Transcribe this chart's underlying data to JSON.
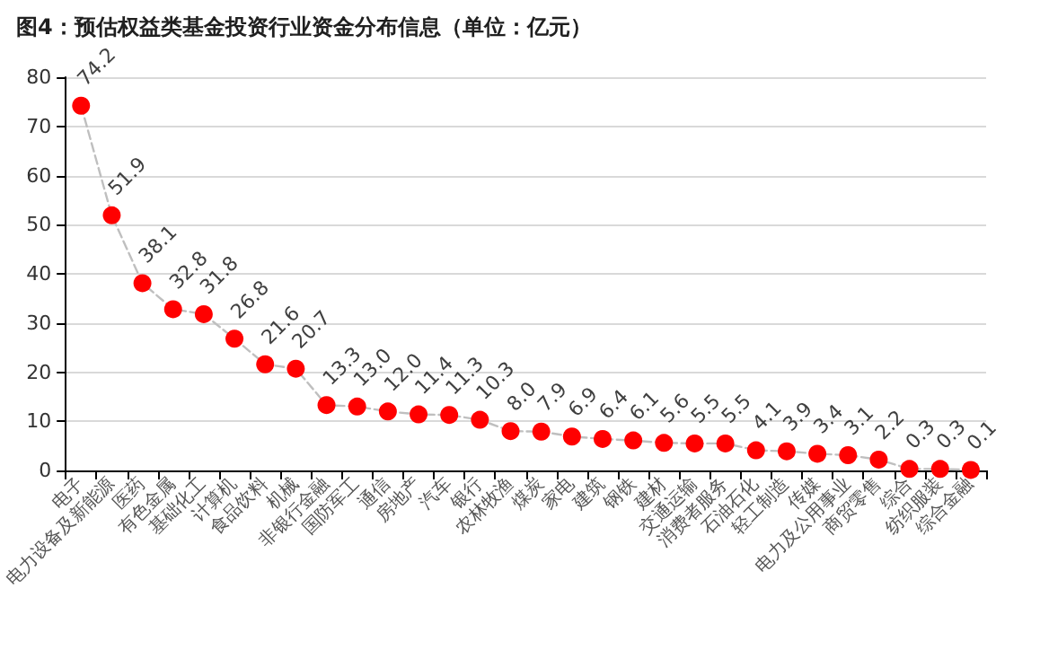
{
  "chart_data": {
    "type": "line",
    "title": "图4：预估权益类基金投资行业资金分布信息（单位：亿元）",
    "categories": [
      "电子",
      "电力设备及新能源",
      "医药",
      "有色金属",
      "基础化工",
      "计算机",
      "食品饮料",
      "机械",
      "非银行金融",
      "国防军工",
      "通信",
      "房地产",
      "汽车",
      "银行",
      "农林牧渔",
      "煤炭",
      "家电",
      "建筑",
      "钢铁",
      "建材",
      "交通运输",
      "消费者服务",
      "石油石化",
      "轻工制造",
      "传媒",
      "电力及公用事业",
      "商贸零售",
      "综合",
      "纺织服装",
      "综合金融"
    ],
    "series": [
      {
        "color": "#ff0000",
        "values": [
          74.2,
          51.9,
          38.1,
          32.8,
          31.8,
          26.8,
          21.6,
          20.7,
          13.3,
          13.0,
          12.0,
          11.4,
          11.3,
          10.3,
          8.0,
          7.9,
          6.9,
          6.4,
          6.1,
          5.6,
          5.5,
          5.5,
          4.1,
          3.9,
          3.4,
          3.1,
          2.2,
          0.3,
          0.3,
          0.1
        ],
        "value_labels": [
          "74.2",
          "51.9",
          "38.1",
          "32.8",
          "31.8",
          "26.8",
          "21.6",
          "20.7",
          "13.3",
          "13.0",
          "12.0",
          "11.4",
          "11.3",
          "10.3",
          "8.0",
          "7.9",
          "6.9",
          "6.4",
          "6.1",
          "5.6",
          "5.5",
          "5.5",
          "4.1",
          "3.9",
          "3.4",
          "3.1",
          "2.2",
          "0.3",
          "0.3",
          "0.1"
        ]
      }
    ],
    "ylim": [
      0,
      80
    ],
    "yticks": [
      0,
      10,
      20,
      30,
      40,
      50,
      60,
      70,
      80
    ],
    "grid": "y",
    "marker": "circle",
    "line_style": "dashed"
  }
}
